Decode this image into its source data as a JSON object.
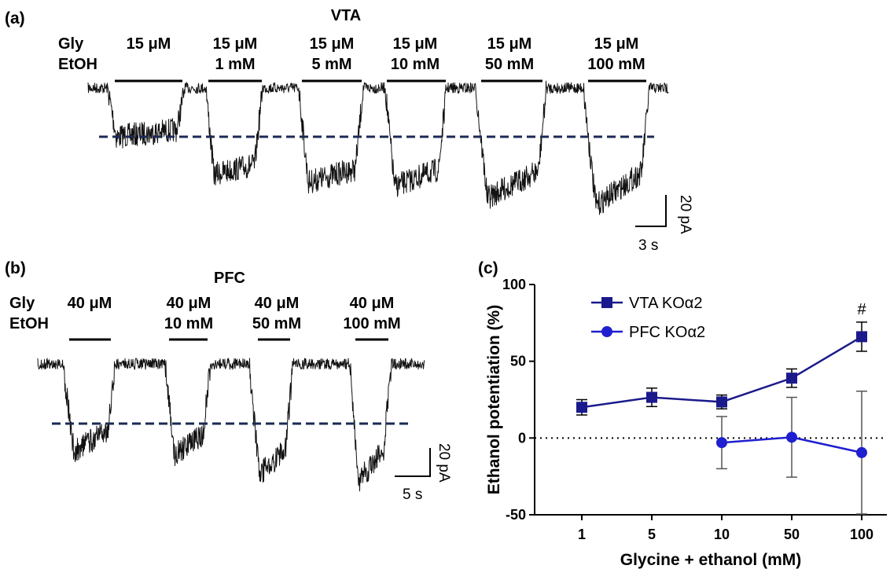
{
  "panels": {
    "a": {
      "label": "(a)",
      "region": "VTA",
      "row_labels": [
        "Gly",
        "EtOH"
      ],
      "applications": [
        {
          "gly": "15 μM",
          "etoh": ""
        },
        {
          "gly": "15 μM",
          "etoh": "1 mM"
        },
        {
          "gly": "15 μM",
          "etoh": "5 mM"
        },
        {
          "gly": "15 μM",
          "etoh": "10 mM"
        },
        {
          "gly": "15 μM",
          "etoh": "50 mM"
        },
        {
          "gly": "15 μM",
          "etoh": "100 mM"
        }
      ],
      "scale_current": "20 pA",
      "scale_time": "3 s"
    },
    "b": {
      "label": "(b)",
      "region": "PFC",
      "row_labels": [
        "Gly",
        "EtOH"
      ],
      "applications": [
        {
          "gly": "40 μM",
          "etoh": ""
        },
        {
          "gly": "40 μM",
          "etoh": "10 mM"
        },
        {
          "gly": "40 μM",
          "etoh": "50 mM"
        },
        {
          "gly": "40 μM",
          "etoh": "100 mM"
        }
      ],
      "scale_current": "20 pA",
      "scale_time": "5 s"
    },
    "c": {
      "label": "(c)"
    }
  },
  "chart_data": {
    "type": "line",
    "title": "",
    "xlabel": "Glycine + ethanol (mM)",
    "ylabel": "Ethanol potentiation (%)",
    "categories": [
      "1",
      "5",
      "10",
      "50",
      "100"
    ],
    "ylim": [
      -50,
      100
    ],
    "yticks": [
      -50,
      0,
      50,
      100
    ],
    "reference_line": 0,
    "legend_position": "top-left",
    "annotation": {
      "text": "#",
      "category": "100"
    },
    "series": [
      {
        "name": "VTA KOα2",
        "marker": "square",
        "color": "#1a1a8c",
        "values": [
          20,
          26.5,
          23.5,
          39,
          66
        ],
        "errors": [
          5,
          6,
          4.5,
          6,
          9.5
        ]
      },
      {
        "name": "PFC KOα2",
        "marker": "circle",
        "color": "#1f1fd0",
        "values": [
          null,
          null,
          -3,
          0.5,
          -9.5
        ],
        "errors": [
          null,
          null,
          17,
          26,
          40
        ]
      }
    ]
  }
}
